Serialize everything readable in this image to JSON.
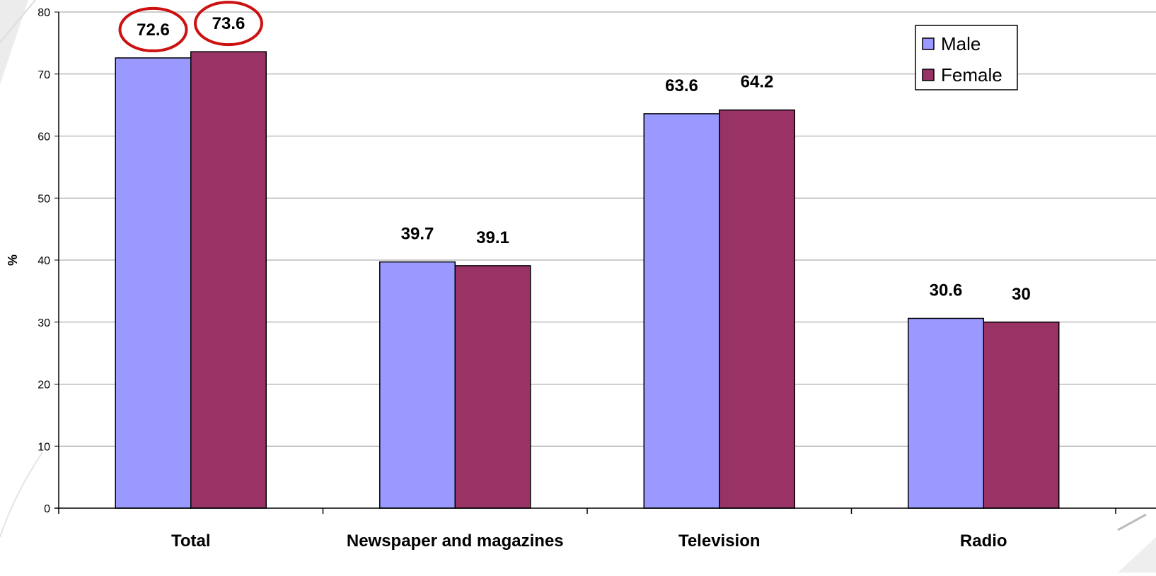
{
  "chart_data": {
    "type": "bar",
    "categories": [
      "Total",
      "Newspaper and magazines",
      "Television",
      "Radio"
    ],
    "series": [
      {
        "name": "Male",
        "values": [
          72.6,
          39.7,
          63.6,
          30.6
        ],
        "color": "#9999FF"
      },
      {
        "name": "Female",
        "values": [
          73.6,
          39.1,
          64.2,
          30
        ],
        "color": "#993366"
      }
    ],
    "data_labels": [
      [
        "72.6",
        "39.7",
        "63.6",
        "30.6"
      ],
      [
        "73.6",
        "39.1",
        "64.2",
        "30"
      ]
    ],
    "ylabel": "%",
    "ylim": [
      0,
      80
    ],
    "yticks": [
      "0",
      "10",
      "20",
      "30",
      "40",
      "50",
      "60",
      "70",
      "80"
    ],
    "grid": true,
    "legend_position": "top-right",
    "highlighted_labels": [
      "72.6",
      "73.6"
    ],
    "highlight_color": "#CC1111"
  }
}
